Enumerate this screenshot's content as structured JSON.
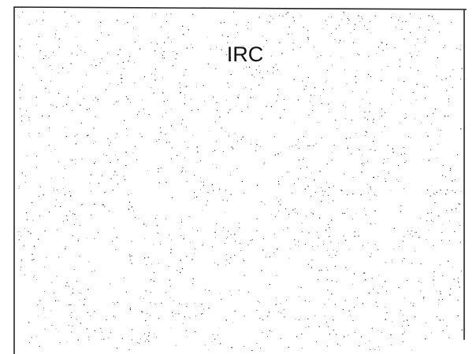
{
  "title": "IRC"
}
